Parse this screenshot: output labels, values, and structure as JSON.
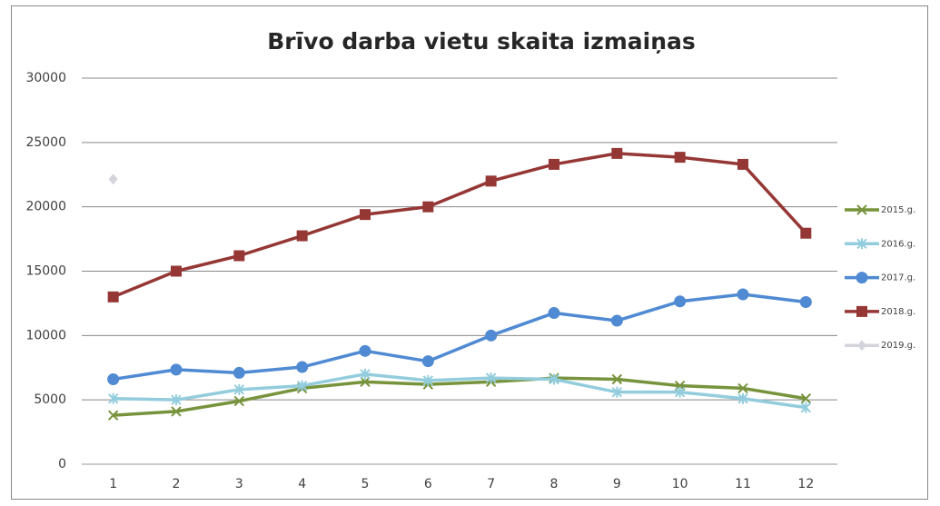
{
  "chart_data": {
    "type": "line",
    "title": "Brīvo darba vietu skaita izmaiņas",
    "categories": [
      "1",
      "2",
      "3",
      "4",
      "5",
      "6",
      "7",
      "8",
      "9",
      "10",
      "11",
      "12"
    ],
    "series": [
      {
        "name": "2015.g.",
        "color": "#77933c",
        "marker": "x",
        "values": [
          3800,
          4100,
          4900,
          5900,
          6400,
          6200,
          6400,
          6700,
          6600,
          6100,
          5900,
          5100
        ]
      },
      {
        "name": "2016.g.",
        "color": "#93cddd",
        "marker": "star",
        "values": [
          5100,
          5000,
          5800,
          6100,
          7000,
          6500,
          6700,
          6600,
          5600,
          5600,
          5100,
          4400
        ]
      },
      {
        "name": "2017.g.",
        "color": "#4f8ad3",
        "marker": "circle",
        "values": [
          6600,
          7350,
          7100,
          7550,
          8800,
          8000,
          10000,
          11750,
          11150,
          12650,
          13200,
          12600
        ]
      },
      {
        "name": "2018.g.",
        "color": "#953735",
        "marker": "square",
        "values": [
          13000,
          15000,
          16200,
          17750,
          19400,
          20000,
          22000,
          23300,
          24150,
          23850,
          23300,
          17950
        ]
      },
      {
        "name": "2019.g.",
        "color": "#d4d4dc",
        "marker": "diamond",
        "values": [
          22150,
          null,
          null,
          null,
          null,
          null,
          null,
          null,
          null,
          null,
          null,
          null
        ]
      }
    ],
    "ylim": [
      0,
      30000
    ],
    "yticks": [
      0,
      5000,
      10000,
      15000,
      20000,
      25000,
      30000
    ],
    "grid": true,
    "legend": "right"
  }
}
